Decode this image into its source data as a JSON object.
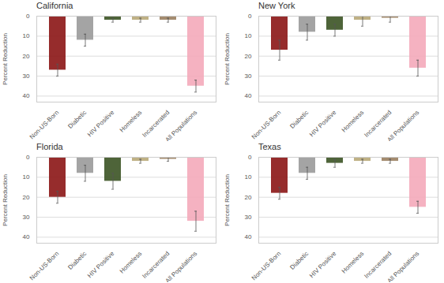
{
  "chart_data": [
    {
      "type": "bar",
      "title": "California",
      "categories": [
        "Non-US-Born",
        "Diabetic",
        "HIV Positive",
        "Homeless",
        "Incarcerated",
        "All Populations"
      ],
      "values": [
        27,
        12,
        2,
        2,
        2,
        35
      ],
      "err_low": [
        3,
        3,
        1,
        1,
        1,
        3
      ],
      "err_high": [
        3,
        3,
        1,
        1,
        1,
        3
      ],
      "colors": [
        "#8B1515",
        "#9A9A9A",
        "#3B5323",
        "#B8A878",
        "#9A8060",
        "#F4AABA"
      ],
      "ylabel": "Percent Reduction",
      "ylim": [
        43,
        0
      ],
      "yticks": [
        0,
        10,
        20,
        30,
        40
      ],
      "grid": true
    },
    {
      "type": "bar",
      "title": "New York",
      "categories": [
        "Non-US-Born",
        "Diabetic",
        "HIV Positive",
        "Homeless",
        "Incarcerated",
        "All Populations"
      ],
      "values": [
        17,
        8,
        7,
        2,
        1,
        26
      ],
      "err_low": [
        5,
        4,
        3,
        3,
        2,
        4
      ],
      "err_high": [
        5,
        4,
        3,
        3,
        2,
        4
      ],
      "colors": [
        "#8B1515",
        "#9A9A9A",
        "#3B5323",
        "#B8A878",
        "#9A8060",
        "#F4AABA"
      ],
      "ylabel": "Percent Reduction",
      "ylim": [
        43,
        0
      ],
      "yticks": [
        0,
        10,
        20,
        30,
        40
      ],
      "grid": true
    },
    {
      "type": "bar",
      "title": "Florida",
      "categories": [
        "Non-US-Born",
        "Diabetic",
        "HIV Positive",
        "Homeless",
        "Incarcerated",
        "All Populations"
      ],
      "values": [
        20,
        8,
        12,
        2,
        1,
        32
      ],
      "err_low": [
        3,
        4,
        4,
        1,
        1,
        5
      ],
      "err_high": [
        3,
        4,
        4,
        1,
        1,
        5
      ],
      "colors": [
        "#8B1515",
        "#9A9A9A",
        "#3B5323",
        "#B8A878",
        "#9A8060",
        "#F4AABA"
      ],
      "ylabel": "Percent Reduction",
      "ylim": [
        43,
        0
      ],
      "yticks": [
        0,
        10,
        20,
        30,
        40
      ],
      "grid": true
    },
    {
      "type": "bar",
      "title": "Texas",
      "categories": [
        "Non-US-Born",
        "Diabetic",
        "HIV Positive",
        "Homeless",
        "Incarcerated",
        "All Populations"
      ],
      "values": [
        18,
        8,
        3,
        2,
        2,
        25
      ],
      "err_low": [
        3,
        3,
        2,
        1,
        1,
        3
      ],
      "err_high": [
        3,
        3,
        2,
        1,
        1,
        3
      ],
      "colors": [
        "#8B1515",
        "#9A9A9A",
        "#3B5323",
        "#B8A878",
        "#9A8060",
        "#F4AABA"
      ],
      "ylabel": "Percent Reduction",
      "ylim": [
        43,
        0
      ],
      "yticks": [
        0,
        10,
        20,
        30,
        40
      ],
      "grid": true
    }
  ]
}
